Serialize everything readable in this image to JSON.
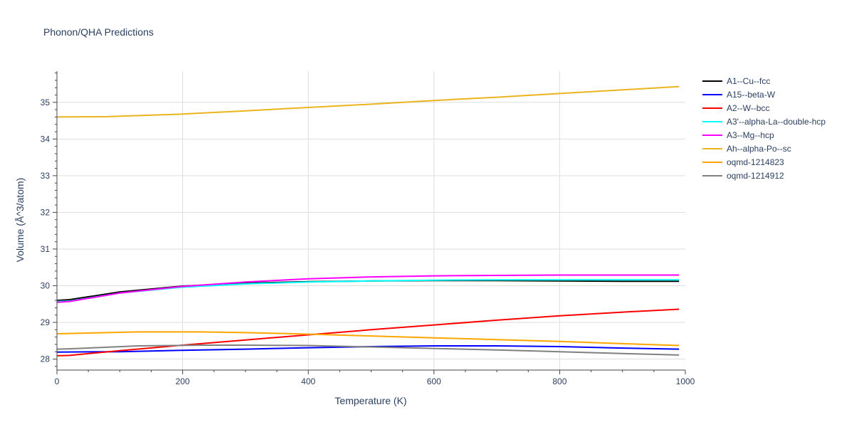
{
  "chart_data": {
    "type": "line",
    "title": "Phonon/QHA Predictions",
    "xlabel": "Temperature (K)",
    "ylabel": "Volume (Å^3/atom)",
    "xlim": [
      0,
      1000
    ],
    "ylim": [
      27.7,
      35.85
    ],
    "xticks": [
      0,
      200,
      400,
      600,
      800,
      1000
    ],
    "yticks": [
      28,
      29,
      30,
      31,
      32,
      33,
      34,
      35
    ],
    "grid": true,
    "legend_position": "right",
    "series": [
      {
        "name": "A1--Cu--fcc",
        "color": "#000000",
        "x": [
          0,
          20,
          100,
          200,
          300,
          400,
          500,
          600,
          700,
          800,
          900,
          990
        ],
        "y": [
          29.6,
          29.62,
          29.83,
          29.99,
          30.07,
          30.11,
          30.13,
          30.14,
          30.14,
          30.13,
          30.12,
          30.12
        ]
      },
      {
        "name": "A15--beta-W",
        "color": "#0000ff",
        "x": [
          0,
          100,
          200,
          300,
          400,
          500,
          600,
          700,
          800,
          900,
          990
        ],
        "y": [
          28.19,
          28.2,
          28.24,
          28.27,
          28.31,
          28.34,
          28.36,
          28.36,
          28.34,
          28.3,
          28.27
        ]
      },
      {
        "name": "A2--W--bcc",
        "color": "#ff0000",
        "x": [
          0,
          20,
          100,
          200,
          300,
          400,
          500,
          600,
          700,
          800,
          900,
          990
        ],
        "y": [
          28.09,
          28.1,
          28.23,
          28.38,
          28.52,
          28.66,
          28.8,
          28.93,
          29.06,
          29.18,
          29.28,
          29.36
        ]
      },
      {
        "name": "A3'--alpha-La--double-hcp",
        "color": "#00ffff",
        "x": [
          0,
          20,
          100,
          200,
          300,
          400,
          500,
          600,
          700,
          800,
          900,
          990
        ],
        "y": [
          29.57,
          29.58,
          29.8,
          29.96,
          30.05,
          30.1,
          30.13,
          30.15,
          30.16,
          30.16,
          30.16,
          30.16
        ]
      },
      {
        "name": "A3--Mg--hcp",
        "color": "#ff00ff",
        "x": [
          0,
          20,
          100,
          200,
          300,
          400,
          500,
          600,
          700,
          800,
          900,
          990
        ],
        "y": [
          29.55,
          29.57,
          29.8,
          29.98,
          30.1,
          30.19,
          30.24,
          30.27,
          30.28,
          30.29,
          30.29,
          30.29
        ]
      },
      {
        "name": "Ah--alpha-Po--sc",
        "color": "#ebb31d",
        "x": [
          0,
          80,
          200,
          300,
          400,
          500,
          600,
          700,
          800,
          900,
          990
        ],
        "y": [
          34.6,
          34.61,
          34.68,
          34.77,
          34.86,
          34.95,
          35.05,
          35.14,
          35.24,
          35.34,
          35.43
        ]
      },
      {
        "name": "oqmd-1214823",
        "color": "#ffa500",
        "x": [
          0,
          130,
          230,
          300,
          400,
          500,
          600,
          700,
          800,
          900,
          990
        ],
        "y": [
          28.69,
          28.74,
          28.74,
          28.72,
          28.68,
          28.63,
          28.58,
          28.53,
          28.48,
          28.42,
          28.37
        ]
      },
      {
        "name": "oqmd-1214912",
        "color": "#808080",
        "x": [
          0,
          20,
          130,
          230,
          300,
          400,
          500,
          600,
          700,
          800,
          900,
          990
        ],
        "y": [
          28.27,
          28.28,
          28.36,
          28.38,
          28.38,
          28.37,
          28.33,
          28.29,
          28.25,
          28.2,
          28.15,
          28.11
        ]
      }
    ]
  }
}
